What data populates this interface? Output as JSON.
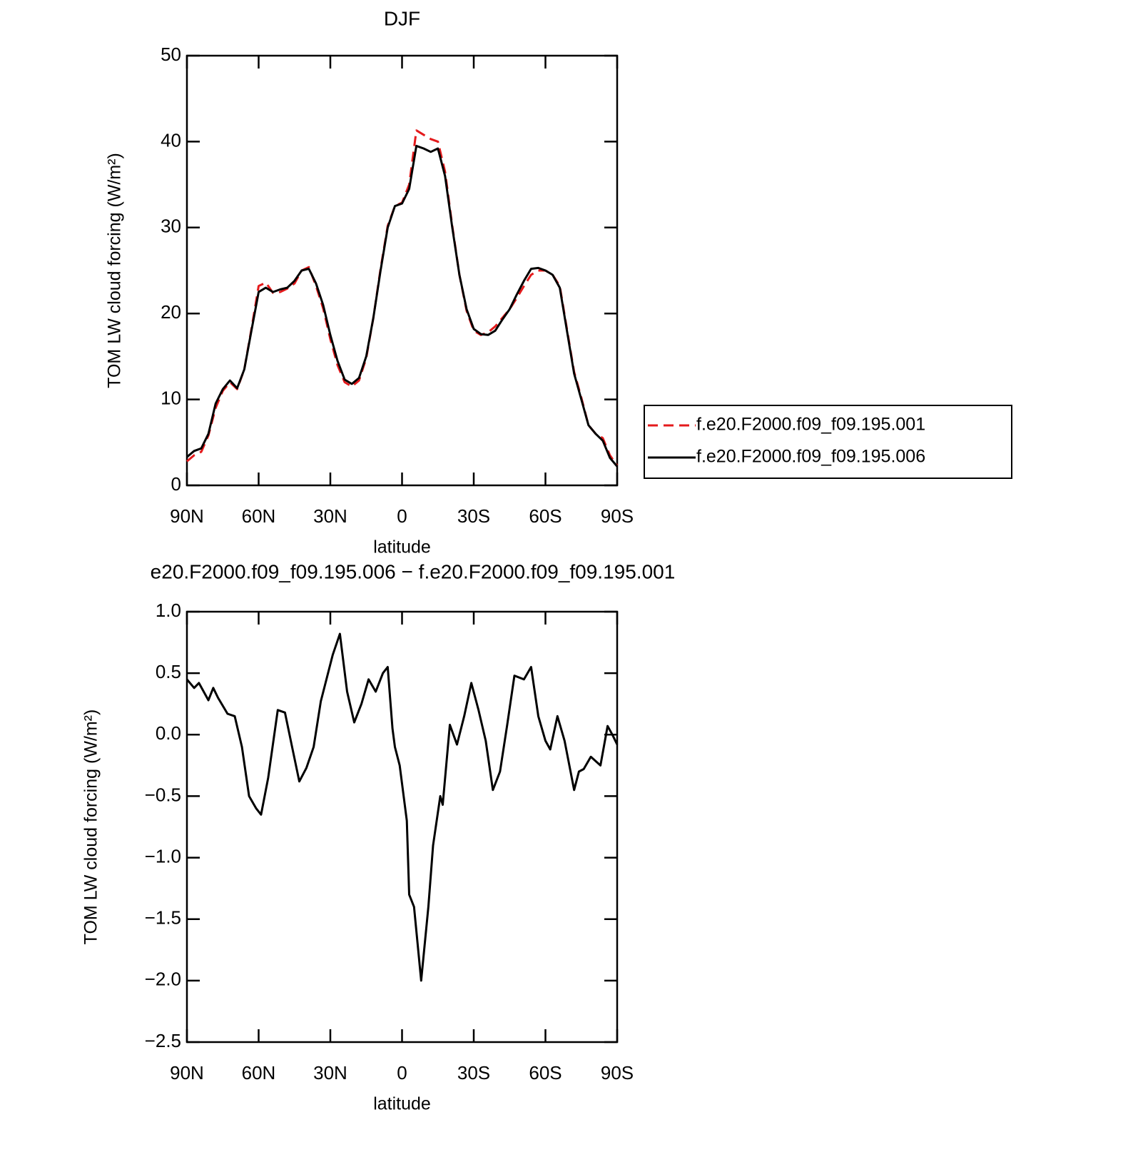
{
  "chart_data": [
    {
      "type": "line",
      "title": "DJF",
      "xlabel": "latitude",
      "ylabel": "TOM LW cloud forcing (W/m²)",
      "x": [
        90,
        87,
        84,
        81,
        78,
        75,
        72,
        69,
        66,
        63,
        60,
        57,
        54,
        51,
        48,
        45,
        42,
        39,
        36,
        33,
        30,
        27,
        24,
        21,
        18,
        15,
        12,
        9,
        6,
        3,
        0,
        -3,
        -6,
        -9,
        -12,
        -15,
        -18,
        -21,
        -24,
        -27,
        -30,
        -33,
        -36,
        -39,
        -42,
        -45,
        -48,
        -51,
        -54,
        -57,
        -60,
        -63,
        -66,
        -69,
        -72,
        -75,
        -78,
        -81,
        -84,
        -87,
        -90
      ],
      "series": [
        {
          "name": "f.e20.F2000.f09_f09.195.001",
          "color": "#e41a1c",
          "dash": true,
          "values": [
            2.8,
            3.5,
            3.9,
            5.8,
            9.0,
            11.0,
            12.0,
            11.2,
            13.5,
            18.2,
            23.2,
            23.6,
            22.4,
            22.5,
            22.9,
            23.5,
            25.0,
            25.4,
            23.2,
            20.6,
            17.0,
            14.0,
            12.0,
            11.5,
            12.2,
            14.8,
            19.5,
            25.2,
            30.2,
            32.5,
            32.9,
            35.0,
            41.3,
            40.8,
            40.3,
            40.0,
            36.5,
            30.2,
            24.5,
            20.3,
            18.0,
            17.5,
            17.8,
            18.5,
            19.5,
            20.5,
            21.8,
            23.2,
            24.5,
            25.0,
            25.0,
            24.5,
            23.2,
            18.2,
            13.2,
            10.2,
            7.0,
            6.0,
            5.5,
            3.5,
            2.3
          ]
        },
        {
          "name": "f.e20.F2000.f09_f09.195.006",
          "color": "#000000",
          "dash": false,
          "values": [
            3.3,
            4.0,
            4.3,
            6.0,
            9.5,
            11.2,
            12.2,
            11.3,
            13.5,
            18.0,
            22.5,
            23.0,
            22.5,
            22.8,
            23.0,
            23.8,
            25.0,
            25.2,
            23.5,
            21.0,
            17.5,
            14.5,
            12.3,
            11.8,
            12.5,
            15.0,
            19.5,
            25.0,
            30.0,
            32.5,
            32.8,
            34.5,
            39.5,
            39.2,
            38.8,
            39.2,
            36.0,
            30.0,
            24.5,
            20.5,
            18.2,
            17.6,
            17.5,
            18.0,
            19.3,
            20.5,
            22.2,
            23.8,
            25.2,
            25.3,
            25.0,
            24.5,
            23.0,
            18.0,
            13.0,
            10.0,
            7.0,
            6.0,
            5.2,
            3.2,
            2.2
          ]
        }
      ],
      "xlim": [
        90,
        -90
      ],
      "xticks": [
        {
          "value": 90,
          "label": "90N"
        },
        {
          "value": 60,
          "label": "60N"
        },
        {
          "value": 30,
          "label": "30N"
        },
        0,
        {
          "value": -30,
          "label": "30S"
        },
        {
          "value": -60,
          "label": "60S"
        },
        {
          "value": -90,
          "label": "90S"
        }
      ],
      "ylim": [
        0,
        50
      ],
      "yticks": [
        0,
        10,
        20,
        30,
        40,
        50
      ],
      "legend": "right"
    },
    {
      "type": "line",
      "title": "e20.F2000.f09_f09.195.006 − f.e20.F2000.f09_f09.195.001",
      "xlabel": "latitude",
      "ylabel": "TOM LW cloud forcing (W/m²)",
      "x": [
        90,
        87,
        85,
        81,
        79,
        77,
        73,
        70,
        67,
        64,
        61,
        59,
        56,
        52,
        49,
        46,
        43,
        40,
        37,
        34,
        29,
        26,
        23,
        20,
        17,
        14,
        11,
        8,
        6,
        4,
        3,
        1,
        -2,
        -3,
        -5,
        -8,
        -11,
        -13,
        -16,
        -17,
        -20,
        -23,
        -26,
        -29,
        -32,
        -35,
        -38,
        -41,
        -44,
        -47,
        -51,
        -54,
        -57,
        -60,
        -62,
        -65,
        -68,
        -72,
        -74,
        -76,
        -79,
        -83,
        -86,
        -88,
        -90
      ],
      "values": [
        0.45,
        0.38,
        0.42,
        0.28,
        0.38,
        0.3,
        0.17,
        0.15,
        -0.1,
        -0.5,
        -0.6,
        -0.65,
        -0.35,
        0.2,
        0.18,
        -0.1,
        -0.38,
        -0.27,
        -0.1,
        0.27,
        0.65,
        0.82,
        0.35,
        0.1,
        0.25,
        0.45,
        0.35,
        0.5,
        0.55,
        0.05,
        -0.1,
        -0.25,
        -0.7,
        -1.3,
        -1.4,
        -2.0,
        -1.4,
        -0.9,
        -0.5,
        -0.57,
        0.08,
        -0.08,
        0.15,
        0.42,
        0.2,
        -0.05,
        -0.45,
        -0.3,
        0.08,
        0.48,
        0.45,
        0.55,
        0.15,
        -0.05,
        -0.12,
        0.15,
        -0.05,
        -0.45,
        -0.3,
        -0.28,
        -0.18,
        -0.25,
        0.07,
        0.0,
        -0.08
      ],
      "color": "#000000",
      "xlim": [
        90,
        -90
      ],
      "xticks": [
        {
          "value": 90,
          "label": "90N"
        },
        {
          "value": 60,
          "label": "60N"
        },
        {
          "value": 30,
          "label": "30N"
        },
        0,
        {
          "value": -30,
          "label": "30S"
        },
        {
          "value": -60,
          "label": "60S"
        },
        {
          "value": -90,
          "label": "90S"
        }
      ],
      "ylim": [
        -2.5,
        1.0
      ],
      "yticks": [
        {
          "value": -2.5,
          "label": "−2.5"
        },
        {
          "value": -2.0,
          "label": "−2.0"
        },
        {
          "value": -1.5,
          "label": "−1.5"
        },
        {
          "value": -1.0,
          "label": "−1.0"
        },
        {
          "value": -0.5,
          "label": "−0.5"
        },
        {
          "value": 0,
          "label": "0.0"
        },
        0.5,
        {
          "value": 1.0,
          "label": "1.0"
        }
      ]
    }
  ]
}
